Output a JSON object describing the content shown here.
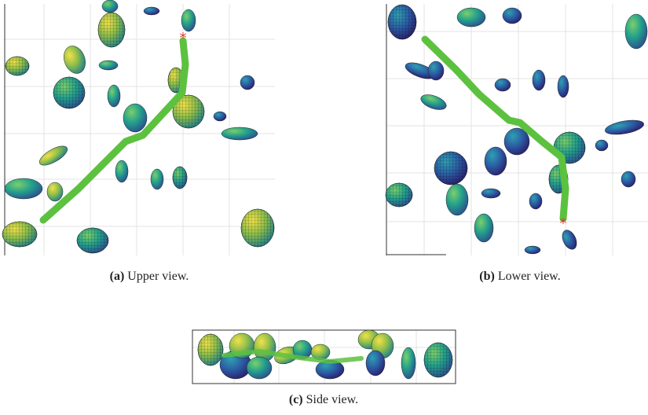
{
  "figures": [
    {
      "label": "(a)",
      "caption": "Upper view."
    },
    {
      "label": "(b)",
      "caption": "Lower view."
    },
    {
      "label": "(c)",
      "caption": "Side view."
    }
  ]
}
